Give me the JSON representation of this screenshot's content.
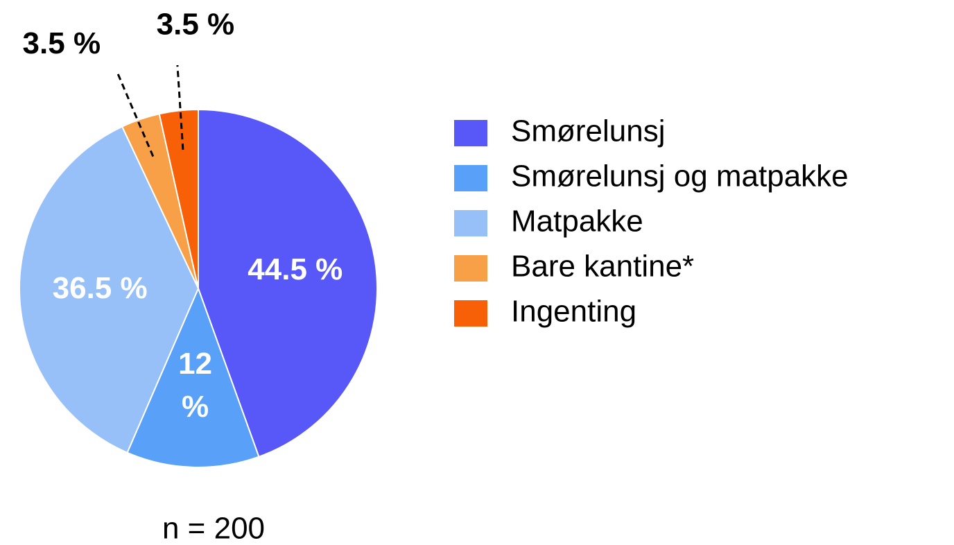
{
  "chart_data": {
    "type": "pie",
    "categories": [
      "Smørelunsj",
      "Smørelunsj og matpakke",
      "Matpakke",
      "Bare kantine*",
      "Ingenting"
    ],
    "values": [
      44.5,
      12,
      36.5,
      3.5,
      3.5
    ],
    "value_labels": [
      "44.5 %",
      "12 %",
      "36.5 %",
      "3.5 %",
      "3.5 %"
    ],
    "colors": [
      "#5858f8",
      "#58a0f8",
      "#98c0f8",
      "#f8a048",
      "#f86008"
    ],
    "annotation": "n = 200",
    "legend": "right"
  }
}
